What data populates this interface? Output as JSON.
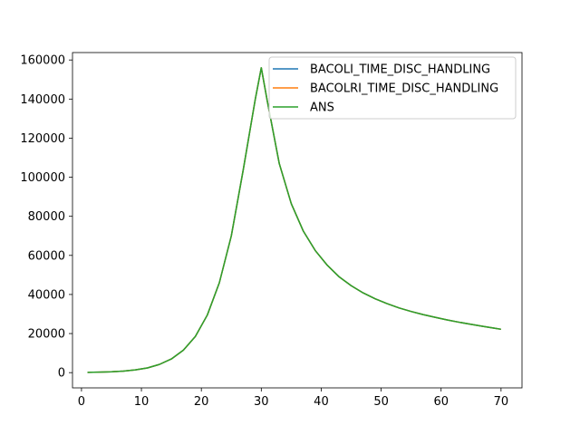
{
  "chart_data": {
    "type": "line",
    "title": "",
    "xlabel": "",
    "ylabel": "",
    "xlim": [
      -1.5,
      73.5
    ],
    "ylim": [
      -7800,
      163800
    ],
    "xticks": [
      0,
      10,
      20,
      30,
      40,
      50,
      60,
      70
    ],
    "yticks": [
      0,
      20000,
      40000,
      60000,
      80000,
      100000,
      120000,
      140000,
      160000
    ],
    "grid": false,
    "legend_position": "top-right",
    "x": [
      1,
      3,
      5,
      7,
      9,
      11,
      13,
      15,
      17,
      19,
      21,
      23,
      25,
      27,
      29,
      30,
      31,
      33,
      35,
      37,
      39,
      41,
      43,
      45,
      47,
      49,
      51,
      53,
      55,
      57,
      59,
      61,
      63,
      65,
      67,
      69,
      70
    ],
    "series": [
      {
        "name": "BACOLI_TIME_DISC_HANDLING",
        "color": "#1f77b4",
        "values": [
          130,
          250,
          450,
          800,
          1400,
          2400,
          4200,
          7000,
          11500,
          18500,
          29500,
          46000,
          70000,
          104000,
          140000,
          156000,
          139000,
          107000,
          86500,
          72500,
          62500,
          55000,
          49000,
          44500,
          40800,
          37800,
          35300,
          33100,
          31300,
          29700,
          28300,
          27000,
          25800,
          24700,
          23700,
          22700,
          22200
        ]
      },
      {
        "name": "BACOLRI_TIME_DISC_HANDLING",
        "color": "#ff7f0e",
        "values": [
          130,
          250,
          450,
          800,
          1400,
          2400,
          4200,
          7000,
          11500,
          18500,
          29500,
          46000,
          70000,
          104000,
          140000,
          156000,
          139000,
          107000,
          86500,
          72500,
          62500,
          55000,
          49000,
          44500,
          40800,
          37800,
          35300,
          33100,
          31300,
          29700,
          28300,
          27000,
          25800,
          24700,
          23700,
          22700,
          22200
        ]
      },
      {
        "name": "ANS",
        "color": "#2ca02c",
        "values": [
          130,
          250,
          450,
          800,
          1400,
          2400,
          4200,
          7000,
          11500,
          18500,
          29500,
          46000,
          70000,
          104000,
          140000,
          156000,
          139000,
          107000,
          86500,
          72500,
          62500,
          55000,
          49000,
          44500,
          40800,
          37800,
          35300,
          33100,
          31300,
          29700,
          28300,
          27000,
          25800,
          24700,
          23700,
          22700,
          22200
        ]
      }
    ]
  }
}
